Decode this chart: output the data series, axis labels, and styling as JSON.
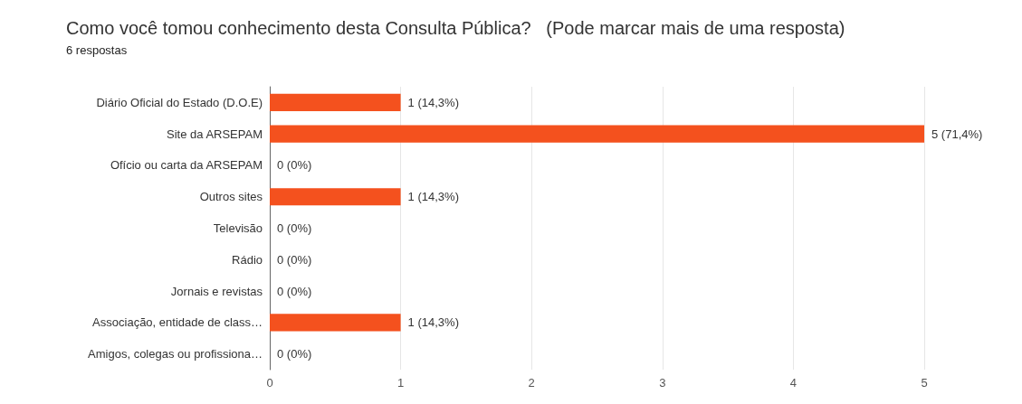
{
  "chart_data": {
    "type": "bar",
    "orientation": "horizontal",
    "title": "Como você tomou conhecimento desta Consulta Pública?   (Pode marcar mais de uma resposta)",
    "subtitle": "6 respostas",
    "categories": [
      "Diário Oficial do Estado (D.O.E)",
      "Site da ARSEPAM",
      "Ofício ou carta da ARSEPAM",
      "Outros sites",
      "Televisão",
      "Rádio",
      "Jornais e revistas",
      "Associação, entidade de class…",
      "Amigos, colegas ou profissiona…"
    ],
    "values": [
      1,
      5,
      0,
      1,
      0,
      0,
      0,
      1,
      0
    ],
    "value_labels": [
      "1 (14,3%)",
      "5 (71,4%)",
      "0 (0%)",
      "1 (14,3%)",
      "0 (0%)",
      "0 (0%)",
      "0 (0%)",
      "1 (14,3%)",
      "0 (0%)"
    ],
    "color": "#f4511e",
    "xlim": [
      0,
      5
    ],
    "xticks": [
      0,
      1,
      2,
      3,
      4,
      5
    ],
    "grid": "x"
  }
}
